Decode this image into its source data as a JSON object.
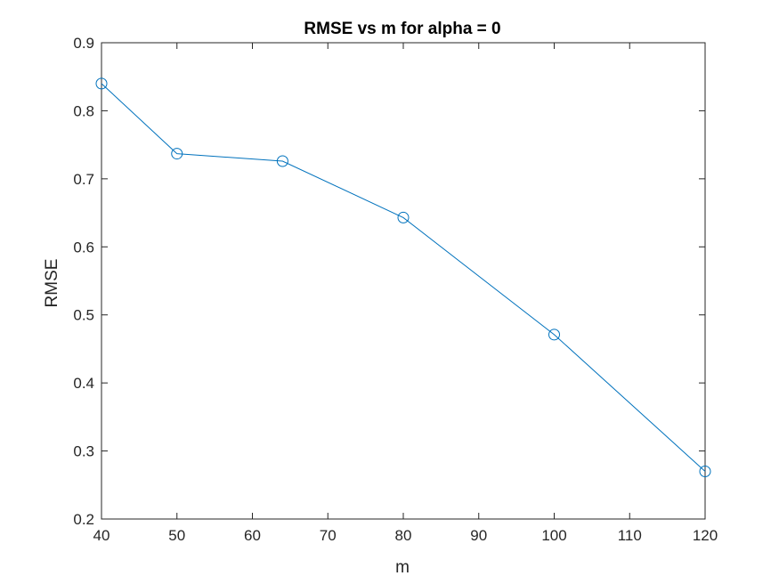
{
  "chart_data": {
    "type": "line",
    "title": "RMSE vs m for alpha = 0",
    "xlabel": "m",
    "ylabel": "RMSE",
    "xlim": [
      40,
      120
    ],
    "ylim": [
      0.2,
      0.9
    ],
    "xticks": [
      40,
      50,
      60,
      70,
      80,
      90,
      100,
      110,
      120
    ],
    "yticks": [
      0.2,
      0.3,
      0.4,
      0.5,
      0.6,
      0.7,
      0.8,
      0.9
    ],
    "xtick_labels": [
      "40",
      "50",
      "60",
      "70",
      "80",
      "90",
      "100",
      "110",
      "120"
    ],
    "ytick_labels": [
      "0.2",
      "0.3",
      "0.4",
      "0.5",
      "0.6",
      "0.7",
      "0.8",
      "0.9"
    ],
    "grid": false,
    "marker": "circle-open",
    "series": [
      {
        "x": [
          40,
          50,
          64,
          80,
          100,
          120
        ],
        "y": [
          0.84,
          0.737,
          0.726,
          0.643,
          0.471,
          0.27
        ]
      }
    ],
    "colors": {
      "line": "#0072BD",
      "axis": "#262626"
    }
  }
}
